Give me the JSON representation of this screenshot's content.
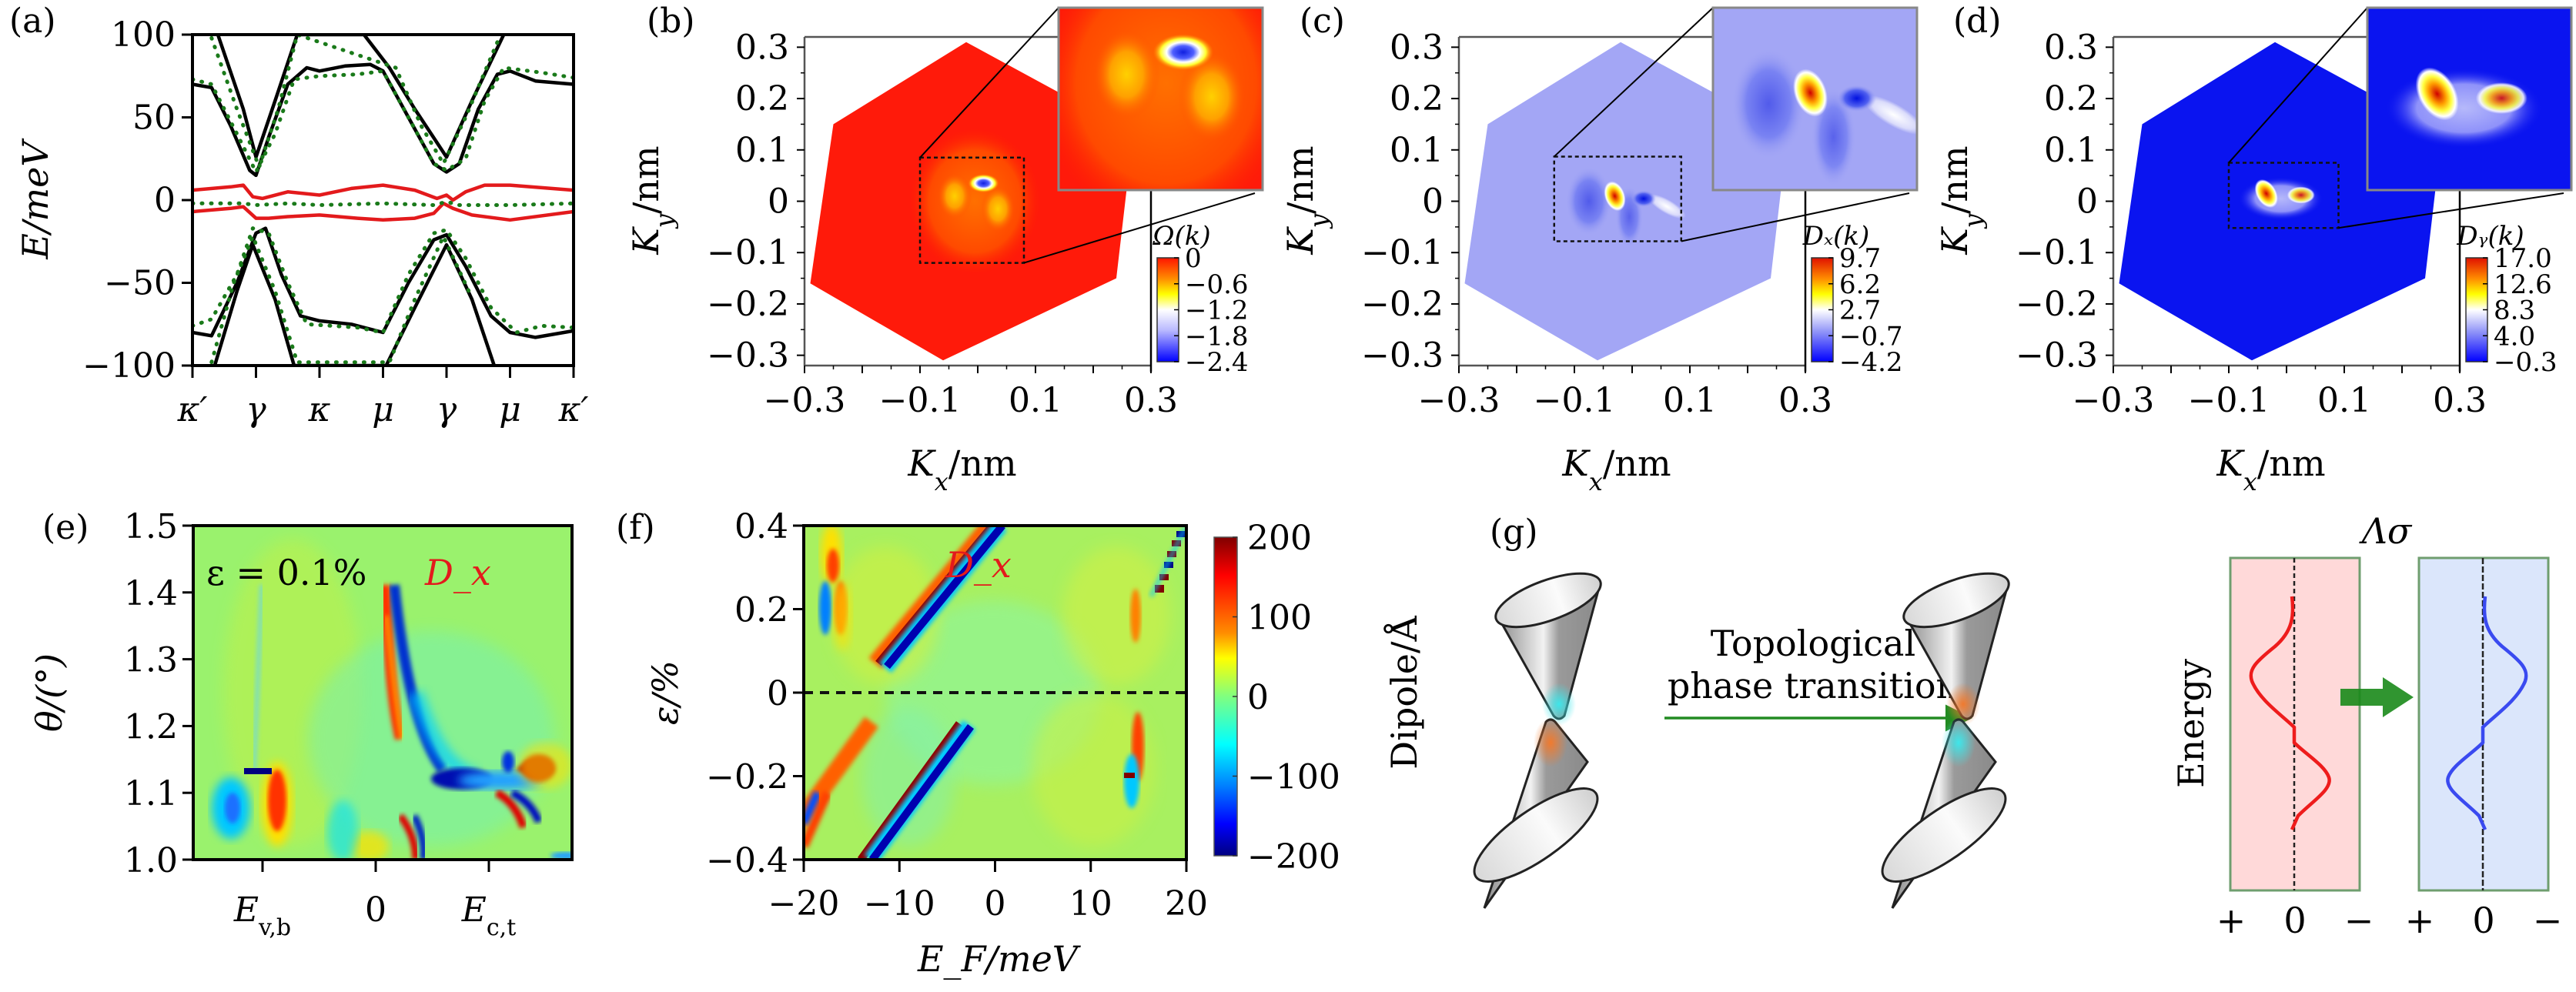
{
  "figure": {
    "panel_labels": [
      "(a)",
      "(b)",
      "(c)",
      "(d)",
      "(e)",
      "(f)",
      "(g)"
    ]
  },
  "chart_data": [
    {
      "id": "a",
      "type": "line",
      "title": "",
      "xlabel": "",
      "ylabel": "E/meV",
      "ylim": [
        -100,
        100
      ],
      "yticks": [
        100,
        50,
        0,
        -50,
        -100
      ],
      "ytick_labels": [
        "100",
        "50",
        "0",
        "−50",
        "−100"
      ],
      "x_categories": [
        "κ′",
        "γ",
        "κ",
        "μ",
        "γ",
        "μ",
        "κ′"
      ],
      "x": [
        0,
        1,
        2,
        3,
        4,
        5,
        6
      ],
      "colors": {
        "conduction_valence": "#000000",
        "strained": "#1a7a1a",
        "flat": "#e31a1c"
      },
      "series": [
        {
          "name": "upper band 1",
          "style": "solid",
          "color": "black",
          "x": [
            0,
            0.3,
            0.6,
            0.9,
            1.0,
            1.2,
            1.5,
            1.8,
            2.0,
            2.4,
            2.8,
            3.0,
            3.4,
            3.8,
            4.0,
            4.2,
            4.5,
            4.8,
            5.0,
            5.4,
            6.0
          ],
          "y": [
            70,
            68,
            45,
            18,
            15,
            38,
            70,
            80,
            78,
            81,
            82,
            78,
            50,
            22,
            17,
            22,
            55,
            76,
            78,
            72,
            70
          ]
        },
        {
          "name": "upper band 2",
          "style": "solid",
          "color": "black",
          "x": [
            0.4,
            0.8,
            1.0,
            1.3,
            1.65,
            2.7,
            3.1,
            3.5,
            4.0,
            4.4,
            4.9
          ],
          "y": [
            100,
            55,
            26,
            60,
            100,
            100,
            80,
            55,
            26,
            60,
            100
          ]
        },
        {
          "name": "upper band strained",
          "style": "dotted",
          "color": "green",
          "x": [
            0,
            0.3,
            0.7,
            1.0,
            1.3,
            1.6,
            2.0,
            2.6,
            3.0,
            3.4,
            3.8,
            4.0,
            4.3,
            4.6,
            4.9,
            5.1,
            5.5,
            6.0
          ],
          "y": [
            73,
            70,
            40,
            17,
            40,
            73,
            75,
            76,
            78,
            50,
            22,
            18,
            25,
            60,
            80,
            79,
            77,
            74
          ]
        },
        {
          "name": "upper band strained 2",
          "style": "dotted",
          "color": "green",
          "x": [
            0.3,
            0.7,
            1.05,
            1.35,
            1.65,
            3.2,
            3.6,
            3.95,
            4.3,
            4.85
          ],
          "y": [
            98,
            55,
            20,
            55,
            100,
            80,
            45,
            22,
            50,
            100
          ]
        },
        {
          "name": "flat band upper",
          "style": "solid",
          "color": "red",
          "x": [
            0,
            0.6,
            0.8,
            0.95,
            1.1,
            1.5,
            2.0,
            2.5,
            3.0,
            3.5,
            3.85,
            4.0,
            4.1,
            4.3,
            4.6,
            5.0,
            6.0
          ],
          "y": [
            6,
            8,
            9,
            2,
            1,
            5,
            3,
            7,
            9,
            6,
            1,
            3,
            0,
            5,
            9,
            9,
            6
          ]
        },
        {
          "name": "flat band lower",
          "style": "solid",
          "color": "red",
          "x": [
            0,
            0.6,
            0.8,
            1.0,
            1.2,
            1.5,
            2.0,
            2.6,
            3.0,
            3.5,
            3.8,
            3.95,
            4.1,
            4.4,
            5.0,
            6.0
          ],
          "y": [
            -7,
            -5,
            -4,
            -11,
            -11,
            -10,
            -9,
            -11,
            -12,
            -11,
            -8,
            -2,
            -5,
            -9,
            -12,
            -7
          ]
        },
        {
          "name": "flat band strained",
          "style": "dotted",
          "color": "green",
          "x": [
            0,
            0.8,
            1.0,
            1.5,
            2.0,
            3.0,
            3.8,
            4.0,
            4.2,
            5.0,
            6.0
          ],
          "y": [
            -2,
            -2,
            -3,
            -2,
            -3,
            -2,
            -3,
            -1,
            -3,
            -3,
            -2
          ]
        },
        {
          "name": "lower band 1",
          "style": "solid",
          "color": "black",
          "x": [
            0,
            0.3,
            0.7,
            1.0,
            1.15,
            1.4,
            1.7,
            2.0,
            2.5,
            3.0,
            3.4,
            3.8,
            4.0,
            4.3,
            4.7,
            5.0,
            5.4,
            6.0
          ],
          "y": [
            -80,
            -82,
            -50,
            -20,
            -17,
            -45,
            -70,
            -73,
            -75,
            -80,
            -50,
            -24,
            -21,
            -40,
            -70,
            -80,
            -83,
            -79
          ]
        },
        {
          "name": "lower band 2",
          "style": "solid",
          "color": "black",
          "x": [
            0.35,
            0.7,
            0.95,
            1.3,
            1.6,
            3.05,
            3.5,
            4.0,
            4.4,
            4.75
          ],
          "y": [
            -100,
            -55,
            -27,
            -60,
            -100,
            -100,
            -65,
            -27,
            -60,
            -100
          ]
        },
        {
          "name": "lower band strained",
          "style": "dotted",
          "color": "green",
          "x": [
            0,
            0.3,
            0.7,
            0.95,
            1.2,
            1.5,
            1.8,
            2.2,
            2.6,
            3.0,
            3.4,
            3.8,
            4.0,
            4.3,
            4.7,
            5.1,
            5.5,
            6.0
          ],
          "y": [
            -76,
            -72,
            -45,
            -17,
            -20,
            -50,
            -75,
            -76,
            -77,
            -80,
            -45,
            -20,
            -18,
            -35,
            -65,
            -80,
            -76,
            -77
          ]
        },
        {
          "name": "lower band strained 2",
          "style": "dotted",
          "color": "green",
          "x": [
            0.3,
            0.65,
            0.95,
            1.3,
            1.65,
            3.1,
            3.5,
            3.95,
            4.35
          ],
          "y": [
            -98,
            -50,
            -22,
            -55,
            -98,
            -98,
            -60,
            -22,
            -55
          ]
        }
      ]
    },
    {
      "id": "b",
      "type": "heatmap",
      "xlabel": "K_x/nm",
      "ylabel": "K_y/nm",
      "xlim": [
        -0.3,
        0.3
      ],
      "ylim": [
        -0.32,
        0.32
      ],
      "xticks": [
        -0.3,
        -0.1,
        0.1,
        0.3
      ],
      "xtick_labels": [
        "−0.3",
        "−0.1",
        "0.1",
        "0.3"
      ],
      "yticks": [
        0.3,
        0.2,
        0.1,
        0,
        -0.1,
        -0.2,
        -0.3
      ],
      "ytick_labels": [
        "0.3",
        "0.2",
        "0.1",
        "0",
        "−0.1",
        "−0.2",
        "−0.3"
      ],
      "colorbar_title": "Ω(k)",
      "colorbar_ticks": [
        "0",
        "−0.6",
        "−1.2",
        "−1.8",
        "−2.4"
      ],
      "colorbar_range": [
        -2.4,
        0
      ],
      "colormap": [
        "#ff1400",
        "#ff8c00",
        "#ffff00",
        "#ffffff",
        "#0000ff"
      ],
      "background_color": "#ff1a0a",
      "features": [
        {
          "kind": "min",
          "x": 0.01,
          "y": 0.035,
          "value": -2.4
        },
        {
          "kind": "lobe",
          "x": -0.04,
          "y": 0.01,
          "value": -0.8
        },
        {
          "kind": "lobe",
          "x": 0.035,
          "y": -0.015,
          "value": -0.8
        }
      ],
      "zoom_box": {
        "x": [
          -0.1,
          0.08
        ],
        "y": [
          -0.12,
          0.085
        ]
      },
      "inset": "magnified zoom box"
    },
    {
      "id": "c",
      "type": "heatmap",
      "xlabel": "K_x/nm",
      "ylabel": "K_y/nm",
      "xlim": [
        -0.3,
        0.3
      ],
      "ylim": [
        -0.32,
        0.32
      ],
      "xticks": [
        -0.3,
        -0.1,
        0.1,
        0.3
      ],
      "xtick_labels": [
        "−0.3",
        "−0.1",
        "0.1",
        "0.3"
      ],
      "yticks": [
        0.3,
        0.2,
        0.1,
        0,
        -0.1,
        -0.2,
        -0.3
      ],
      "ytick_labels": [
        "0.3",
        "0.2",
        "0.1",
        "0",
        "−0.1",
        "−0.2",
        "−0.3"
      ],
      "colorbar_title": "D_x(k)",
      "colorbar_ticks": [
        "9.7",
        "6.2",
        "2.7",
        "−0.7",
        "−4.2"
      ],
      "colorbar_range": [
        -4.2,
        9.7
      ],
      "colormap": [
        "#e01000",
        "#ffff00",
        "#ffffff",
        "#9ea3f5",
        "#0000ff"
      ],
      "background_color": "#a3a6f5",
      "features": [
        {
          "kind": "max",
          "x": -0.03,
          "y": 0.01,
          "value": 9.7
        },
        {
          "kind": "min",
          "x": 0.02,
          "y": 0.005,
          "value": -4.2
        },
        {
          "kind": "ridge",
          "x": 0.06,
          "y": -0.01,
          "value": 2.7
        }
      ],
      "zoom_box": {
        "x": [
          -0.135,
          0.085
        ],
        "y": [
          -0.078,
          0.087
        ]
      },
      "inset": "magnified zoom box"
    },
    {
      "id": "d",
      "type": "heatmap",
      "xlabel": "K_x/nm",
      "ylabel": "K_y/nm",
      "xlim": [
        -0.3,
        0.3
      ],
      "ylim": [
        -0.32,
        0.32
      ],
      "xticks": [
        -0.3,
        -0.1,
        0.1,
        0.3
      ],
      "xtick_labels": [
        "−0.3",
        "−0.1",
        "0.1",
        "0.3"
      ],
      "yticks": [
        0.3,
        0.2,
        0.1,
        0,
        -0.1,
        -0.2,
        -0.3
      ],
      "ytick_labels": [
        "0.3",
        "0.2",
        "0.1",
        "0",
        "−0.1",
        "−0.2",
        "−0.3"
      ],
      "colorbar_title": "D_y(k)",
      "colorbar_ticks": [
        "17.0",
        "12.6",
        "8.3",
        "4.0",
        "−0.3"
      ],
      "colorbar_range": [
        -0.3,
        17.0
      ],
      "colormap": [
        "#e01000",
        "#ffff00",
        "#ffffff",
        "#6a6aff",
        "#0000ff"
      ],
      "background_color": "#0a14f0",
      "features": [
        {
          "kind": "max",
          "x": -0.035,
          "y": 0.015,
          "value": 17.0
        },
        {
          "kind": "max",
          "x": 0.025,
          "y": 0.012,
          "value": 12.6
        }
      ],
      "zoom_box": {
        "x": [
          -0.1,
          0.09
        ],
        "y": [
          -0.052,
          0.075
        ]
      },
      "inset": "magnified zoom box"
    },
    {
      "id": "e",
      "type": "heatmap",
      "xlabel": "",
      "ylabel": "θ/(°)",
      "ylim": [
        1.0,
        1.5
      ],
      "yticks": [
        1.5,
        1.4,
        1.3,
        1.2,
        1.1,
        1.0
      ],
      "ytick_labels": [
        "1.5",
        "1.4",
        "1.3",
        "1.2",
        "1.1",
        "1.0"
      ],
      "xtick_labels": [
        "E_v,b",
        "0",
        "E_c,t"
      ],
      "annotations": [
        "ε = 0.1%",
        "D_x"
      ],
      "colormap": "jet",
      "colorbar_range": [
        -200,
        200
      ],
      "features": [
        {
          "kind": "dark-blue bar",
          "x": "E_v,b",
          "y": 1.13
        },
        {
          "kind": "red ridge",
          "x": "just above 0",
          "y": [
            1.1,
            1.3
          ]
        },
        {
          "kind": "blue ridge",
          "x": "0 to E_c,t",
          "y": [
            1.1,
            1.3
          ]
        },
        {
          "kind": "dark red lobe",
          "x": "E_c,t",
          "y": 1.1
        }
      ]
    },
    {
      "id": "f",
      "type": "heatmap",
      "xlabel": "E_F/meV",
      "ylabel": "ε/%",
      "xlim": [
        -20,
        20
      ],
      "ylim": [
        -0.4,
        0.4
      ],
      "xticks": [
        -20,
        -10,
        0,
        10,
        20
      ],
      "xtick_labels": [
        "−20",
        "−10",
        "0",
        "10",
        "20"
      ],
      "yticks": [
        0.4,
        0.2,
        0,
        -0.2,
        -0.4
      ],
      "ytick_labels": [
        "0.4",
        "0.2",
        "0",
        "−0.2",
        "−0.4"
      ],
      "annotations": [
        "D_x"
      ],
      "dashed_line_y": 0,
      "colorbar_label": "Dipole/Å",
      "colorbar_ticks": [
        200,
        100,
        0,
        -100,
        -200
      ],
      "colorbar_tick_labels": [
        "200",
        "100",
        "0",
        "−100",
        "−200"
      ],
      "colorbar_range": [
        -200,
        200
      ],
      "colormap": [
        "#800000",
        "#ff0000",
        "#ff8c00",
        "#ffff00",
        "#80ff80",
        "#00ffff",
        "#0080ff",
        "#0000ff",
        "#000080"
      ],
      "features": [
        {
          "kind": "diagonal red/blue band",
          "from": [
            0,
            0.05
          ],
          "to": [
            7,
            0.4
          ]
        },
        {
          "kind": "diagonal red/blue band",
          "from": [
            -1,
            -0.05
          ],
          "to": [
            -7,
            -0.4
          ]
        },
        {
          "kind": "dipole",
          "x": -16,
          "y": 0.25
        },
        {
          "kind": "dipole",
          "x": 14.5,
          "y": -0.19
        },
        {
          "kind": "step feature",
          "x": [
            17,
            20
          ],
          "y": [
            0.28,
            0.4
          ]
        }
      ]
    },
    {
      "id": "g",
      "type": "diagram",
      "transition_label": [
        "Topological",
        "phase transition"
      ],
      "lambda_label": "Λσ",
      "energy_label": "Energy",
      "axis_labels": [
        "+",
        "0",
        "−",
        "+",
        "0",
        "−"
      ],
      "colors": {
        "cyan_spot": "#3ee6ea",
        "orange_spot": "#f07a2e",
        "arrow": "#228b22",
        "left_box": "#ffd9d9",
        "right_box": "#dbe6fb",
        "box_border": "#6f9e6f",
        "left_curve": "#ee1c1c",
        "right_curve": "#3a4af0"
      }
    }
  ]
}
